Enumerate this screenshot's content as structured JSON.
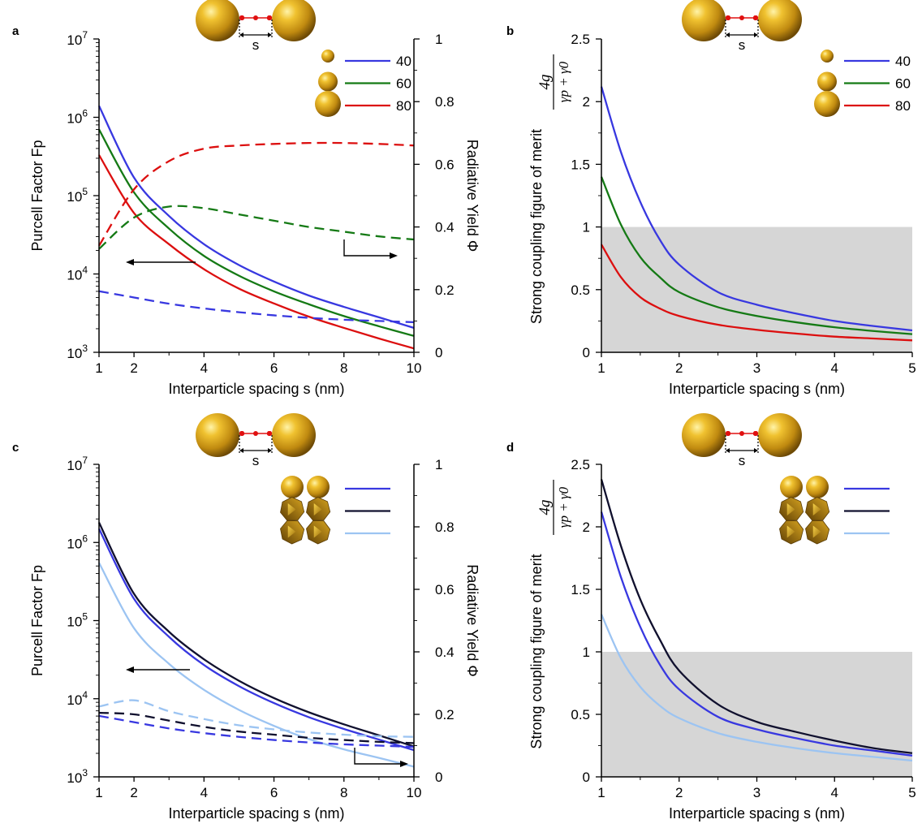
{
  "figure": {
    "panel_labels": [
      "a",
      "b",
      "c",
      "d"
    ],
    "fp_axis_label": "Purcell Factor Fp",
    "yield_axis_label": "Radiative Yield Φ",
    "spacing_axis_label": "Interparticle spacing s (nm)",
    "merit_axis_label": "Strong coupling figure of merit",
    "merit_fraction": {
      "numerator": "4g",
      "denominator": "γp + γ0"
    },
    "spacing_symbol": "s"
  },
  "colors": {
    "d40": "#3838e0",
    "d60": "#157a15",
    "d80": "#dc0f0f",
    "facet1": "#10102e",
    "facet2": "#9cc4f2",
    "shade": "#d6d6d6",
    "gold": "#d4a017"
  },
  "chart_data": [
    {
      "panel": "a",
      "type": "line",
      "xlabel": "Interparticle spacing s (nm)",
      "ylabel": "Purcell Factor Fp",
      "ylabel_right": "Radiative Yield Φ",
      "xlim": [
        1,
        10
      ],
      "ylim": [
        1000,
        10000000
      ],
      "ylim_right": [
        0,
        1
      ],
      "yscale": "log",
      "xticks": [
        "1",
        "2",
        "4",
        "6",
        "8",
        "10"
      ],
      "yticks_right": [
        "0",
        "0.2",
        "0.4",
        "0.6",
        "0.8",
        "1"
      ],
      "legend_position": "top-right",
      "x": [
        1,
        2,
        3,
        4,
        5,
        6,
        7,
        8,
        9,
        10
      ],
      "series": [
        {
          "name": "40",
          "axis": "left",
          "color": "d40",
          "dash": false,
          "values": [
            1400000,
            170000,
            55000,
            24000,
            13000,
            8000,
            5300,
            3800,
            2800,
            2050
          ]
        },
        {
          "name": "60",
          "axis": "left",
          "color": "d60",
          "dash": false,
          "values": [
            700000,
            110000,
            38000,
            17000,
            9500,
            6000,
            4100,
            2900,
            2150,
            1620
          ]
        },
        {
          "name": "80",
          "axis": "left",
          "color": "d80",
          "dash": false,
          "values": [
            330000,
            60000,
            24000,
            11500,
            6500,
            4200,
            2850,
            2050,
            1500,
            1120
          ]
        },
        {
          "name": "40",
          "axis": "right",
          "color": "d40",
          "dash": true,
          "values": [
            0.195,
            0.175,
            0.155,
            0.14,
            0.128,
            0.118,
            0.11,
            0.104,
            0.1,
            0.096
          ]
        },
        {
          "name": "60",
          "axis": "right",
          "color": "d60",
          "dash": true,
          "values": [
            0.33,
            0.43,
            0.465,
            0.46,
            0.44,
            0.42,
            0.4,
            0.385,
            0.37,
            0.36
          ]
        },
        {
          "name": "80",
          "axis": "right",
          "color": "d80",
          "dash": true,
          "values": [
            0.34,
            0.52,
            0.61,
            0.65,
            0.66,
            0.665,
            0.668,
            0.668,
            0.665,
            0.66
          ]
        }
      ]
    },
    {
      "panel": "b",
      "type": "line",
      "xlabel": "Interparticle spacing s (nm)",
      "ylabel": "Strong coupling figure of merit",
      "xlim": [
        1,
        5
      ],
      "ylim": [
        0,
        2.5
      ],
      "xticks": [
        "1",
        "2",
        "3",
        "4",
        "5"
      ],
      "yticks": [
        "0",
        "0.5",
        "1",
        "1.5",
        "2",
        "2.5"
      ],
      "shaded_region": [
        0,
        1
      ],
      "legend_position": "top-right",
      "x": [
        1,
        1.25,
        1.5,
        1.75,
        2,
        2.5,
        3,
        3.5,
        4,
        4.5,
        5
      ],
      "series": [
        {
          "name": "40",
          "color": "d40",
          "values": [
            2.12,
            1.6,
            1.2,
            0.9,
            0.7,
            0.48,
            0.38,
            0.31,
            0.25,
            0.21,
            0.175
          ]
        },
        {
          "name": "60",
          "color": "d60",
          "values": [
            1.4,
            1.02,
            0.76,
            0.6,
            0.48,
            0.36,
            0.29,
            0.24,
            0.2,
            0.17,
            0.145
          ]
        },
        {
          "name": "80",
          "color": "d80",
          "values": [
            0.86,
            0.6,
            0.44,
            0.35,
            0.29,
            0.22,
            0.18,
            0.15,
            0.125,
            0.11,
            0.095
          ]
        }
      ]
    },
    {
      "panel": "c",
      "type": "line",
      "xlabel": "Interparticle spacing s (nm)",
      "ylabel": "Purcell Factor Fp",
      "ylabel_right": "Radiative Yield Φ",
      "xlim": [
        1,
        10
      ],
      "ylim": [
        1000,
        10000000
      ],
      "ylim_right": [
        0,
        1
      ],
      "yscale": "log",
      "xticks": [
        "1",
        "2",
        "4",
        "6",
        "8",
        "10"
      ],
      "yticks_right": [
        "0",
        "0.2",
        "0.4",
        "0.6",
        "0.8",
        "1"
      ],
      "legend_position": "top-right",
      "x": [
        1,
        2,
        3,
        4,
        5,
        6,
        7,
        8,
        9,
        10
      ],
      "series": [
        {
          "name": "",
          "axis": "left",
          "color": "d40",
          "dash": false,
          "values": [
            1500000,
            190000,
            62000,
            27000,
            14500,
            8800,
            5800,
            4100,
            3000,
            2200
          ]
        },
        {
          "name": "",
          "axis": "left",
          "color": "facet1",
          "dash": false,
          "values": [
            1800000,
            220000,
            72000,
            32000,
            17000,
            10200,
            6700,
            4700,
            3400,
            2450
          ]
        },
        {
          "name": "",
          "axis": "left",
          "color": "facet2",
          "dash": false,
          "values": [
            550000,
            80000,
            28000,
            13000,
            7200,
            4500,
            3050,
            2250,
            1750,
            1350
          ]
        },
        {
          "name": "",
          "axis": "right",
          "color": "d40",
          "dash": true,
          "values": [
            0.195,
            0.175,
            0.155,
            0.14,
            0.128,
            0.118,
            0.11,
            0.104,
            0.1,
            0.096
          ]
        },
        {
          "name": "",
          "axis": "right",
          "color": "facet1",
          "dash": true,
          "values": [
            0.205,
            0.2,
            0.18,
            0.16,
            0.145,
            0.135,
            0.125,
            0.118,
            0.112,
            0.108
          ]
        },
        {
          "name": "",
          "axis": "right",
          "color": "facet2",
          "dash": true,
          "values": [
            0.225,
            0.245,
            0.21,
            0.185,
            0.165,
            0.152,
            0.142,
            0.135,
            0.13,
            0.128
          ]
        }
      ]
    },
    {
      "panel": "d",
      "type": "line",
      "xlabel": "Interparticle spacing s (nm)",
      "ylabel": "Strong coupling figure of merit",
      "xlim": [
        1,
        5
      ],
      "ylim": [
        0,
        2.5
      ],
      "xticks": [
        "1",
        "2",
        "3",
        "4",
        "5"
      ],
      "yticks": [
        "0",
        "0.5",
        "1",
        "1.5",
        "2",
        "2.5"
      ],
      "shaded_region": [
        0,
        1
      ],
      "legend_position": "top-right",
      "x": [
        1,
        1.25,
        1.5,
        1.75,
        2,
        2.5,
        3,
        3.5,
        4,
        4.5,
        5
      ],
      "series": [
        {
          "name": "",
          "color": "d40",
          "values": [
            2.12,
            1.6,
            1.2,
            0.9,
            0.7,
            0.48,
            0.38,
            0.31,
            0.25,
            0.21,
            0.17
          ]
        },
        {
          "name": "",
          "color": "facet1",
          "values": [
            2.38,
            1.85,
            1.42,
            1.1,
            0.85,
            0.58,
            0.44,
            0.36,
            0.29,
            0.23,
            0.19
          ]
        },
        {
          "name": "",
          "color": "facet2",
          "values": [
            1.3,
            0.95,
            0.72,
            0.57,
            0.47,
            0.35,
            0.28,
            0.23,
            0.19,
            0.16,
            0.13
          ]
        }
      ]
    }
  ]
}
